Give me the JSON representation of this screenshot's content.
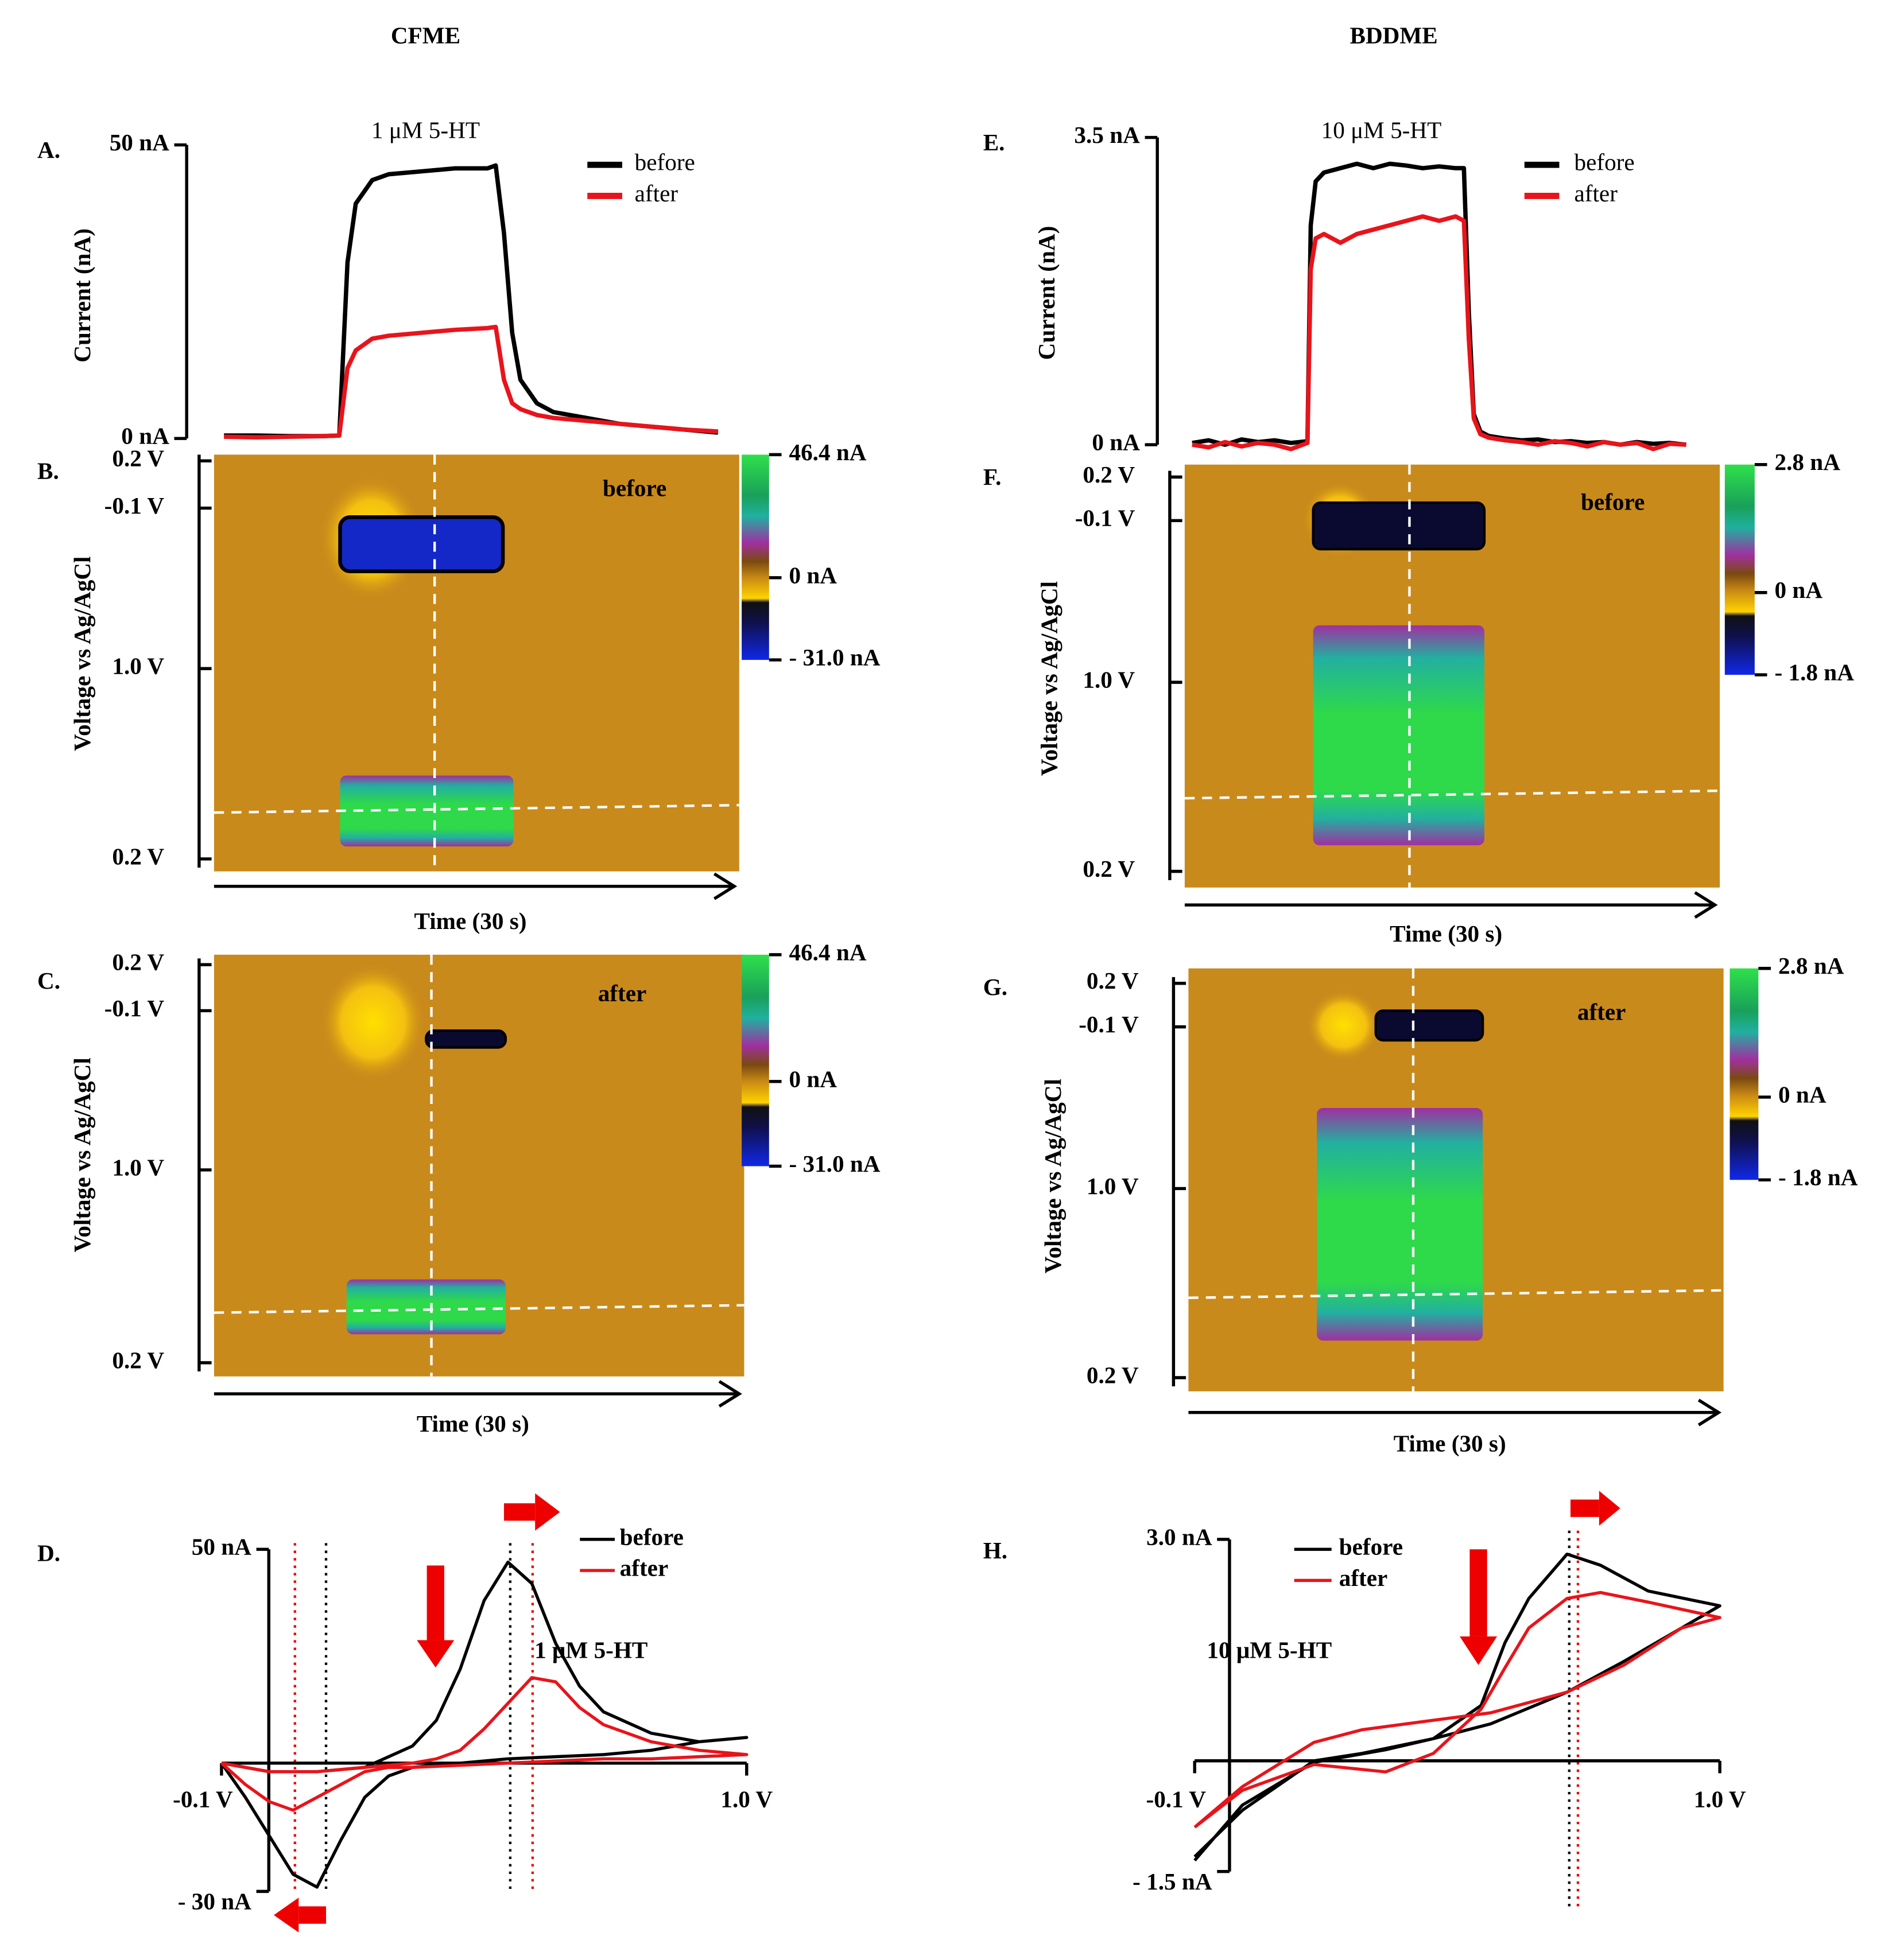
{
  "headers": {
    "left": "CFME",
    "right": "BDDME"
  },
  "chart_data": [
    {
      "type": "line",
      "panel": "A.",
      "annotation": "1 μM 5-HT",
      "y_label": "Current (nA)",
      "x": [
        0,
        2,
        4,
        6,
        7,
        7.5,
        8,
        9,
        10,
        12,
        14,
        16,
        16.5,
        17,
        17.5,
        18,
        19,
        20,
        22,
        24,
        26,
        28,
        30
      ],
      "xlim": [
        0,
        30
      ],
      "ylim": [
        0,
        50
      ],
      "yticks": [
        {
          "value": 0,
          "label": "0 nA"
        },
        {
          "value": 50,
          "label": "50 nA"
        }
      ],
      "series": [
        {
          "name": "before",
          "color": "#000000",
          "values": [
            0.5,
            0.5,
            0.4,
            0.4,
            0.5,
            30,
            40,
            44,
            45,
            45.5,
            46,
            46,
            46.5,
            35,
            18,
            10,
            6,
            4.5,
            3.5,
            2.5,
            2,
            1.5,
            1
          ]
        },
        {
          "name": "after",
          "color": "#e8141b",
          "values": [
            0.3,
            0.2,
            0.3,
            0.4,
            0.5,
            12,
            15,
            17,
            17.5,
            18,
            18.5,
            18.8,
            19,
            10,
            6,
            5,
            4,
            3.5,
            3,
            2.5,
            2,
            1.5,
            1.2
          ]
        }
      ]
    },
    {
      "type": "heatmap",
      "panel": "B.",
      "annotation": "before",
      "x_label": "Time (30 s)",
      "y_label": "Voltage vs Ag/AgCl",
      "ytick_labels": [
        "0.2 V",
        "-0.1 V",
        "1.0 V",
        "0.2 V"
      ],
      "clim": [
        -31,
        46.4
      ],
      "colorbar_ticks": [
        {
          "value": 46.4,
          "label": "46.4 nA"
        },
        {
          "value": 0,
          "label": "0 nA"
        },
        {
          "value": -31,
          "label": "- 31.0 nA"
        }
      ]
    },
    {
      "type": "heatmap",
      "panel": "C.",
      "annotation": "after",
      "x_label": "Time (30 s)",
      "y_label": "Voltage vs Ag/AgCl",
      "ytick_labels": [
        "0.2 V",
        "-0.1 V",
        "1.0 V",
        "0.2 V"
      ],
      "clim": [
        -31,
        46.4
      ],
      "colorbar_ticks": [
        {
          "value": 46.4,
          "label": "46.4 nA"
        },
        {
          "value": 0,
          "label": "0 nA"
        },
        {
          "value": -31,
          "label": "- 31.0 nA"
        }
      ]
    },
    {
      "type": "line",
      "panel": "D.",
      "annotation": "1 μM 5-HT",
      "x": [
        -0.1,
        0.0,
        0.1,
        0.2,
        0.3,
        0.35,
        0.4,
        0.45,
        0.5,
        0.55,
        0.6,
        0.65,
        0.7,
        0.8,
        0.9,
        1.0,
        0.9,
        0.8,
        0.7,
        0.6,
        0.5,
        0.4,
        0.3,
        0.25,
        0.2,
        0.15,
        0.1,
        0.05,
        0.0,
        -0.05,
        -0.1
      ],
      "xlim": [
        -0.1,
        1.0
      ],
      "xticks": [
        {
          "value": -0.1,
          "label": "-0.1 V"
        },
        {
          "value": 1.0,
          "label": "1.0 V"
        }
      ],
      "ylim": [
        -30,
        50
      ],
      "yticks": [
        {
          "value": -30,
          "label": "- 30 nA"
        },
        {
          "value": 50,
          "label": "50 nA"
        }
      ],
      "series": [
        {
          "name": "before",
          "color": "#000000",
          "values": [
            0,
            -2,
            -2,
            -1,
            4,
            10,
            22,
            38,
            47,
            42,
            28,
            18,
            12,
            7,
            5,
            6,
            5,
            3,
            2,
            1.5,
            1,
            0,
            -1,
            -3,
            -8,
            -18,
            -29,
            -26,
            -17,
            -8,
            0
          ]
        },
        {
          "name": "after",
          "color": "#e8141b",
          "values": [
            0,
            -2,
            -2,
            -1,
            0,
            1,
            3,
            8,
            14,
            20,
            19,
            13,
            9,
            5,
            3,
            2,
            1.5,
            1,
            1,
            0.5,
            0,
            -0.5,
            -1,
            -1,
            -2,
            -5,
            -8,
            -11,
            -9,
            -5,
            0
          ]
        }
      ]
    },
    {
      "type": "line",
      "panel": "E.",
      "annotation": "10 μM 5-HT",
      "y_label": "Current (nA)",
      "x": [
        0,
        1,
        2,
        3,
        4,
        5,
        6,
        7,
        7.2,
        7.5,
        8,
        9,
        10,
        11,
        12,
        13,
        14,
        15,
        16,
        16.5,
        16.8,
        17.1,
        17.5,
        18,
        19,
        20,
        21,
        22,
        23,
        24,
        25,
        26,
        27,
        28,
        29,
        30
      ],
      "xlim": [
        0,
        30
      ],
      "ylim": [
        0,
        3.5
      ],
      "yticks": [
        {
          "value": 0,
          "label": "0 nA"
        },
        {
          "value": 3.5,
          "label": "3.5 nA"
        }
      ],
      "series": [
        {
          "name": "before",
          "color": "#000000",
          "values": [
            0.02,
            0.05,
            0.0,
            0.06,
            0.03,
            0.05,
            0.02,
            0.04,
            2.5,
            3.0,
            3.1,
            3.15,
            3.2,
            3.15,
            3.2,
            3.18,
            3.15,
            3.17,
            3.15,
            3.15,
            1.5,
            0.35,
            0.15,
            0.1,
            0.07,
            0.05,
            0.06,
            0.03,
            0.04,
            0.02,
            0.03,
            0.0,
            0.03,
            0.01,
            0.02,
            0.0
          ]
        },
        {
          "name": "after",
          "color": "#e8141b",
          "values": [
            0.0,
            -0.03,
            0.03,
            -0.02,
            0.02,
            0.0,
            -0.05,
            0.02,
            2.0,
            2.35,
            2.4,
            2.3,
            2.4,
            2.45,
            2.5,
            2.55,
            2.6,
            2.55,
            2.6,
            2.55,
            1.2,
            0.3,
            0.12,
            0.08,
            0.05,
            0.03,
            0.0,
            0.04,
            0.02,
            -0.02,
            0.03,
            0.0,
            0.02,
            -0.05,
            0.01,
            0.0
          ]
        }
      ]
    },
    {
      "type": "heatmap",
      "panel": "F.",
      "annotation": "before",
      "x_label": "Time (30 s)",
      "y_label": "Voltage vs Ag/AgCl",
      "ytick_labels": [
        "0.2 V",
        "-0.1 V",
        "1.0 V",
        "0.2 V"
      ],
      "clim": [
        -1.8,
        2.8
      ],
      "colorbar_ticks": [
        {
          "value": 2.8,
          "label": "2.8 nA"
        },
        {
          "value": 0,
          "label": "0 nA"
        },
        {
          "value": -1.8,
          "label": "- 1.8 nA"
        }
      ]
    },
    {
      "type": "heatmap",
      "panel": "G.",
      "annotation": "after",
      "x_label": "Time (30 s)",
      "y_label": "Voltage vs Ag/AgCl",
      "ytick_labels": [
        "0.2 V",
        "-0.1 V",
        "1.0 V",
        "0.2 V"
      ],
      "clim": [
        -1.8,
        2.8
      ],
      "colorbar_ticks": [
        {
          "value": 2.8,
          "label": "2.8 nA"
        },
        {
          "value": 0,
          "label": "0 nA"
        },
        {
          "value": -1.8,
          "label": "- 1.8 nA"
        }
      ]
    },
    {
      "type": "line",
      "panel": "H.",
      "annotation": "10 μM 5-HT",
      "x": [
        -0.1,
        0.0,
        0.15,
        0.3,
        0.4,
        0.5,
        0.55,
        0.6,
        0.68,
        0.75,
        0.85,
        1.0,
        0.92,
        0.8,
        0.68,
        0.52,
        0.4,
        0.25,
        0.15,
        0.0,
        -0.1
      ],
      "xlim": [
        -0.1,
        1.0
      ],
      "xticks": [
        {
          "value": -0.1,
          "label": "-0.1 V"
        },
        {
          "value": 1.0,
          "label": "1.0 V"
        }
      ],
      "ylim": [
        -1.5,
        3.0
      ],
      "yticks": [
        {
          "value": -1.5,
          "label": "- 1.5 nA"
        },
        {
          "value": 3.0,
          "label": "3.0 nA"
        }
      ],
      "series": [
        {
          "name": "before",
          "color": "#000000",
          "values": [
            -1.35,
            -0.6,
            -0.02,
            0.15,
            0.3,
            0.75,
            1.6,
            2.2,
            2.8,
            2.65,
            2.3,
            2.1,
            1.8,
            1.35,
            0.93,
            0.5,
            0.3,
            0.1,
            0.0,
            -0.67,
            -1.3
          ]
        },
        {
          "name": "after",
          "color": "#e8141b",
          "values": [
            -0.9,
            -0.4,
            -0.05,
            -0.15,
            0.1,
            0.7,
            1.26,
            1.8,
            2.2,
            2.28,
            2.15,
            1.94,
            1.8,
            1.3,
            0.93,
            0.65,
            0.55,
            0.42,
            0.25,
            -0.35,
            -0.9
          ]
        }
      ]
    }
  ]
}
